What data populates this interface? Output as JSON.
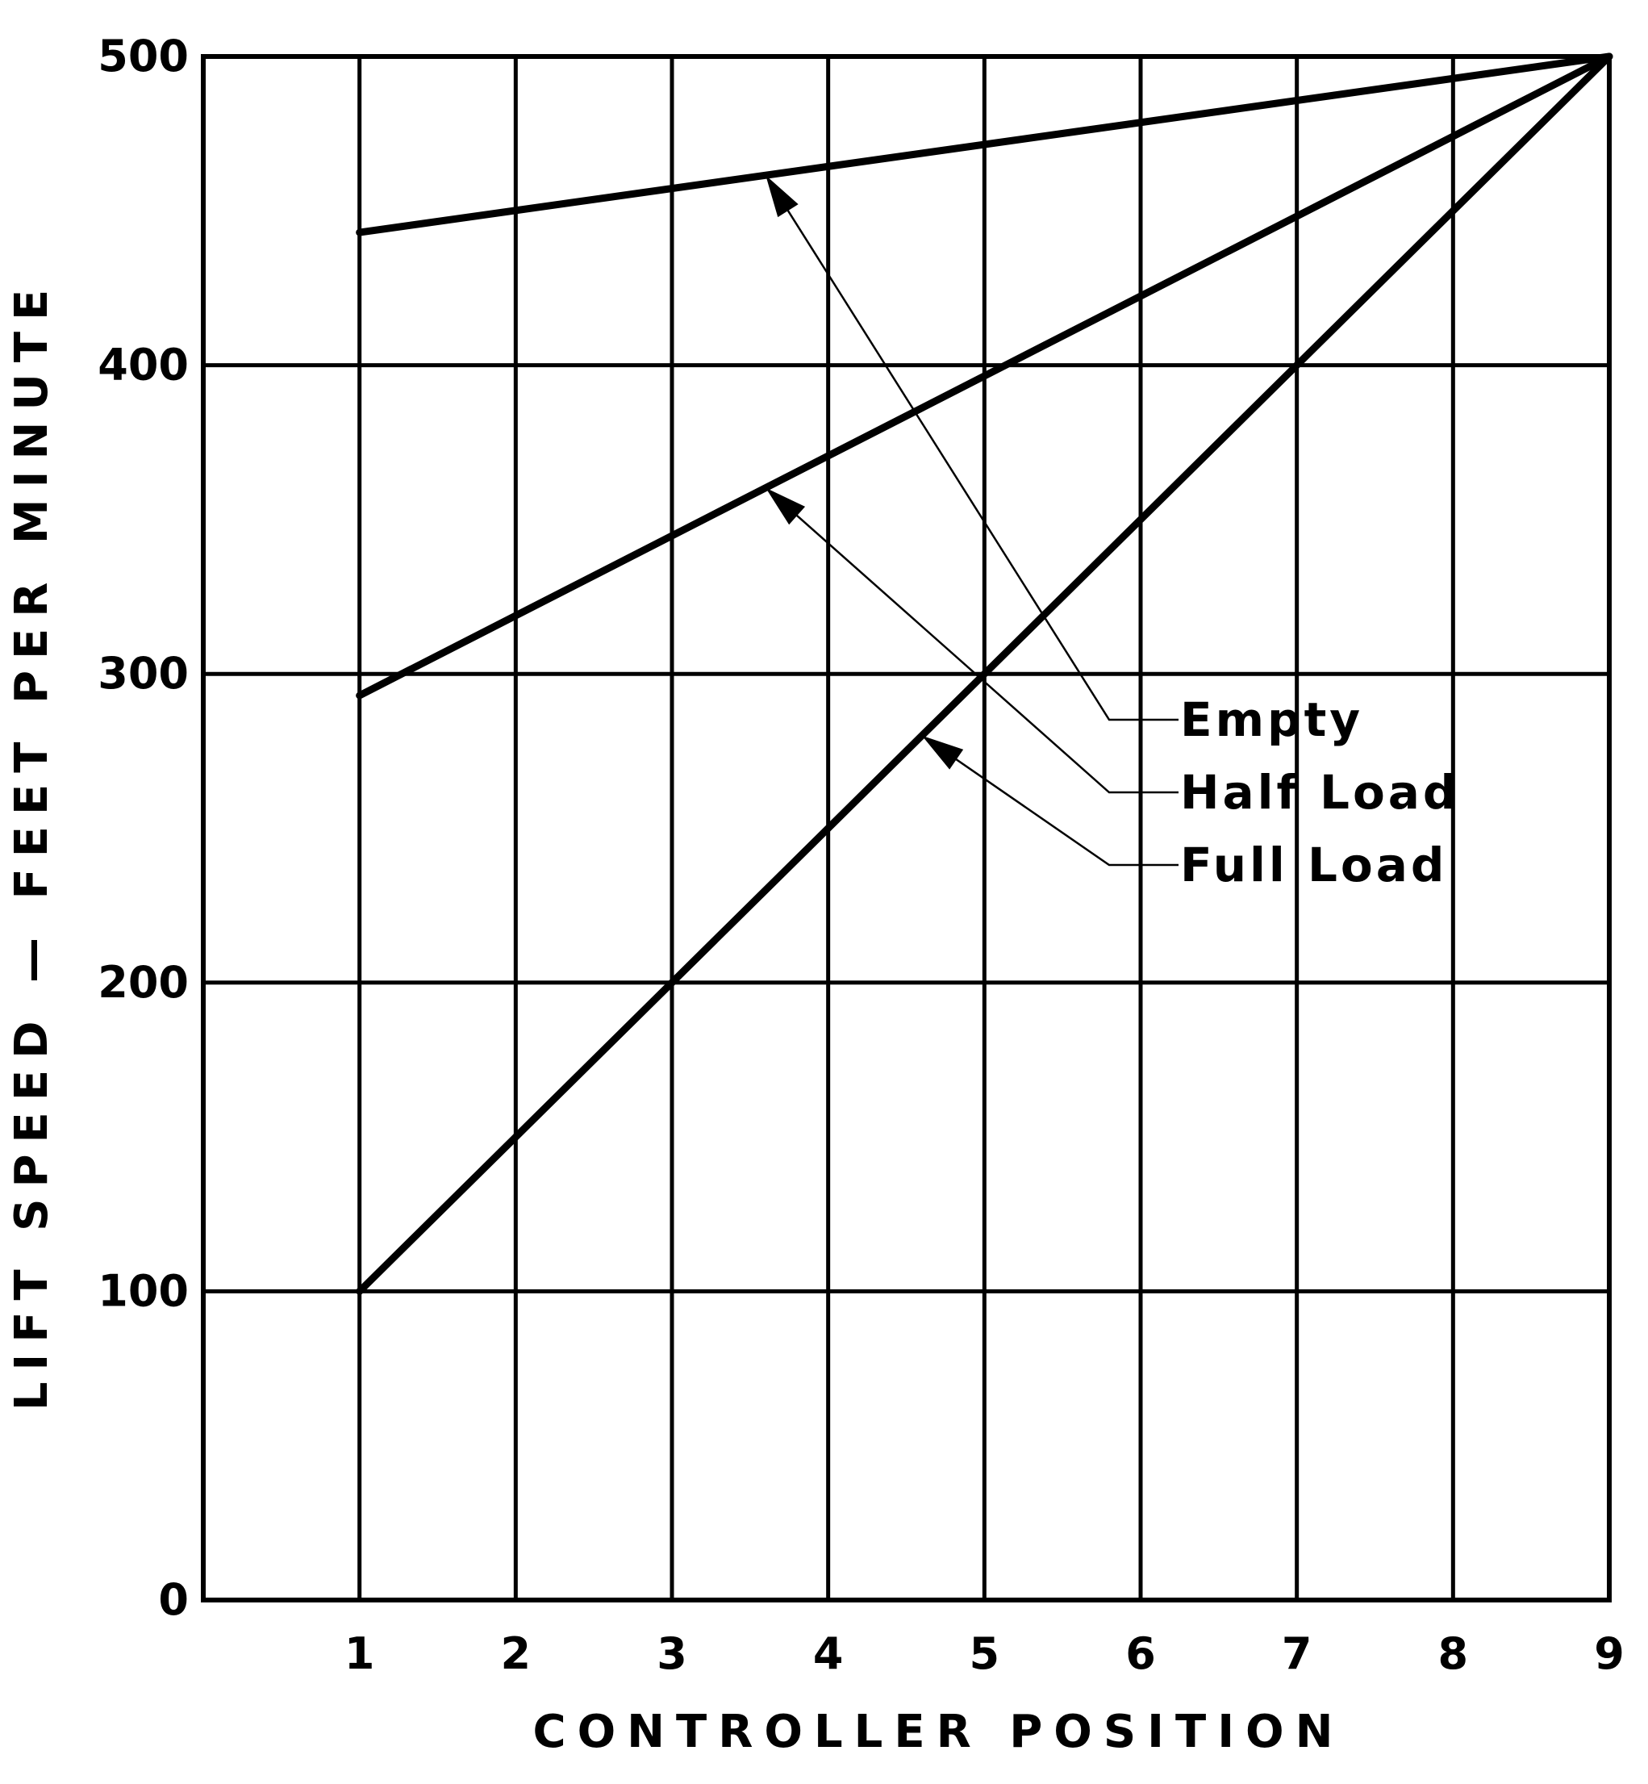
{
  "chart_data": {
    "type": "line",
    "title": "",
    "xlabel": "CONTROLLER POSITION",
    "ylabel": "LIFT SPEED — FEET PER MINUTE",
    "xlim": [
      0,
      9
    ],
    "ylim": [
      0,
      500
    ],
    "x_ticks": [
      1,
      2,
      3,
      4,
      5,
      6,
      7,
      8,
      9
    ],
    "y_ticks": [
      0,
      100,
      200,
      300,
      400,
      500
    ],
    "grid": true,
    "legend": "callout labels with arrows",
    "series": [
      {
        "name": "Empty",
        "x": [
          1,
          9
        ],
        "y": [
          443,
          500
        ]
      },
      {
        "name": "Half Load",
        "x": [
          1,
          9
        ],
        "y": [
          293,
          500
        ]
      },
      {
        "name": "Full Load",
        "x": [
          1,
          9
        ],
        "y": [
          100,
          500
        ]
      }
    ]
  }
}
